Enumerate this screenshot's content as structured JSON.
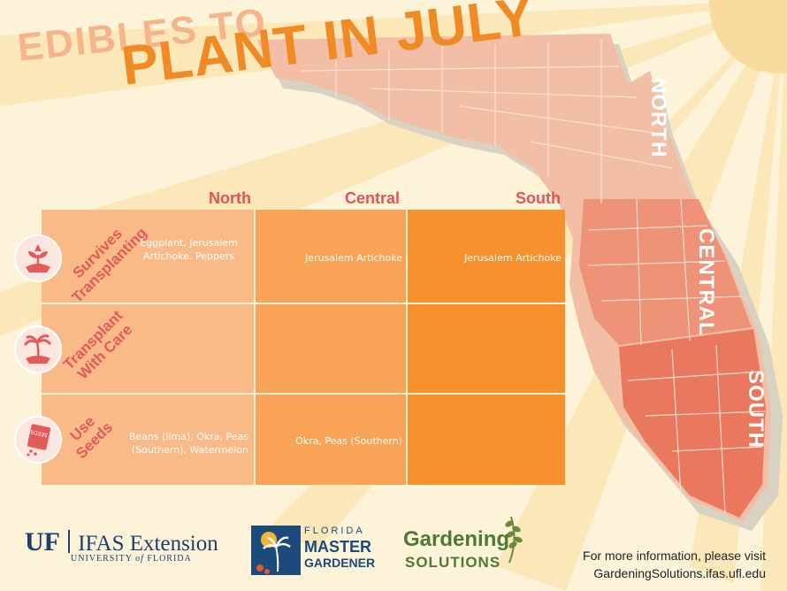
{
  "title": {
    "line1": "EDIBLES TO",
    "line2": "PLANT IN JULY"
  },
  "map_labels": {
    "north": "NORTH",
    "central": "CENTRAL",
    "south": "SOUTH"
  },
  "columns": [
    "North",
    "Central",
    "South"
  ],
  "rows": [
    {
      "label_line1": "Survives",
      "label_line2": "Transplanting",
      "icon": "sprouting-plant-icon",
      "cells": [
        "Eggplant, Jerusalem Artichoke, Peppers",
        "Jerusalem Artichoke",
        "Jerusalem Artichoke"
      ]
    },
    {
      "label_line1": "Transplant",
      "label_line2": "With Care",
      "icon": "palm-tree-icon",
      "cells": [
        "",
        "",
        ""
      ]
    },
    {
      "label_line1": "Use",
      "label_line2": "Seeds",
      "icon": "seed-packet-icon",
      "cells": [
        "Beans (lima), Okra, Peas (Southern), Watermelon",
        "Okra, Peas (Southern)",
        ""
      ]
    }
  ],
  "seed_packet_text": "SEEDS",
  "logos": {
    "uf": "UF",
    "ifas": "IFAS Extension",
    "uf_sub_1": "UNIVERSITY ",
    "uf_sub_of": "of",
    "uf_sub_2": " FLORIDA",
    "fmg_line1": "FLORIDA",
    "fmg_line2": "MASTER",
    "fmg_line3": "GARDENER",
    "gs_line1": "Gardening",
    "gs_line2": "SOLUTIONS"
  },
  "footer": {
    "line1": "For more information, please visit",
    "line2": "GardeningSolutions.ifas.ufl.edu"
  },
  "colors": {
    "north_cell": "#f9ba88",
    "central_cell": "#f8a355",
    "south_cell": "#f7902d",
    "accent_red": "#e0535a",
    "title_orange": "#f08a24",
    "background": "#fdf3d8"
  }
}
